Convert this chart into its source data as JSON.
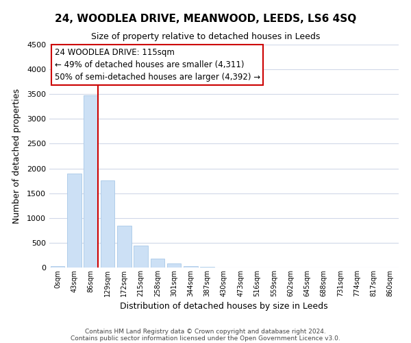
{
  "title": "24, WOODLEA DRIVE, MEANWOOD, LEEDS, LS6 4SQ",
  "subtitle": "Size of property relative to detached houses in Leeds",
  "xlabel": "Distribution of detached houses by size in Leeds",
  "ylabel": "Number of detached properties",
  "bar_labels": [
    "0sqm",
    "43sqm",
    "86sqm",
    "129sqm",
    "172sqm",
    "215sqm",
    "258sqm",
    "301sqm",
    "344sqm",
    "387sqm",
    "430sqm",
    "473sqm",
    "516sqm",
    "559sqm",
    "602sqm",
    "645sqm",
    "688sqm",
    "731sqm",
    "774sqm",
    "817sqm",
    "860sqm"
  ],
  "bar_values": [
    30,
    1900,
    3470,
    1760,
    850,
    450,
    185,
    90,
    30,
    10,
    5,
    2,
    0,
    0,
    0,
    0,
    0,
    0,
    0,
    0,
    0
  ],
  "bar_color": "#cce0f5",
  "bar_edge_color": "#a8c8e8",
  "vline_color": "#cc0000",
  "vline_x": 2.42,
  "ylim": [
    0,
    4500
  ],
  "yticks": [
    0,
    500,
    1000,
    1500,
    2000,
    2500,
    3000,
    3500,
    4000,
    4500
  ],
  "annotation_title": "24 WOODLEA DRIVE: 115sqm",
  "annotation_line1": "← 49% of detached houses are smaller (4,311)",
  "annotation_line2": "50% of semi-detached houses are larger (4,392) →",
  "annotation_box_color": "#ffffff",
  "annotation_box_edge": "#cc0000",
  "footer_line1": "Contains HM Land Registry data © Crown copyright and database right 2024.",
  "footer_line2": "Contains public sector information licensed under the Open Government Licence v3.0.",
  "background_color": "#ffffff",
  "grid_color": "#d0d8e8"
}
